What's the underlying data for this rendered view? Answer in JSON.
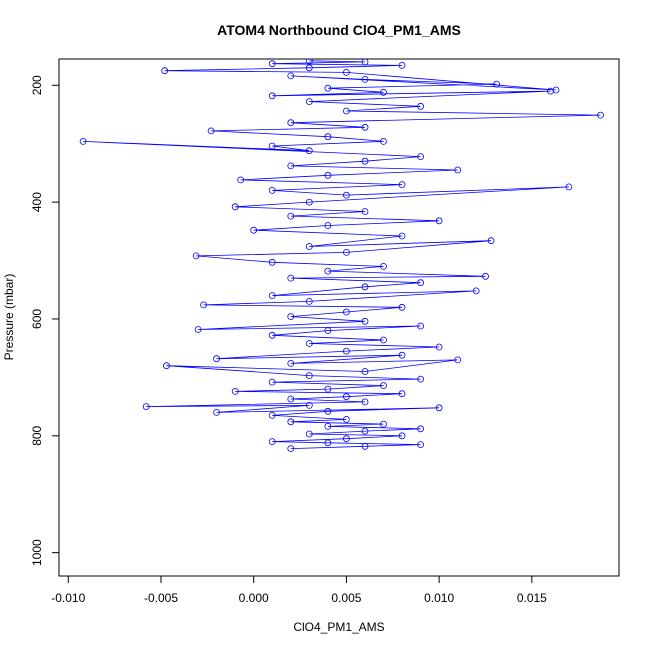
{
  "chart_data": {
    "type": "line",
    "title": "ATOM4 Northbound ClO4_PM1_AMS",
    "xlabel": "ClO4_PM1_AMS",
    "ylabel": "Pressure (mbar)",
    "xlim": [
      -0.0105,
      0.0197
    ],
    "ylim": [
      1040,
      155
    ],
    "y_reversed": true,
    "x_ticks": [
      -0.01,
      -0.005,
      0.0,
      0.005,
      0.01,
      0.015
    ],
    "x_tick_labels": [
      "-0.010",
      "-0.005",
      "0.000",
      "0.005",
      "0.010",
      "0.015"
    ],
    "y_ticks": [
      200,
      400,
      600,
      800,
      1000
    ],
    "y_tick_labels": [
      "200",
      "400",
      "600",
      "800",
      "1000"
    ],
    "marker": "open-circle",
    "grid": false,
    "colors": {
      "series": "#0000ff",
      "axis": "#000000"
    },
    "series": [
      {
        "points": [
          [
            0.002,
            822
          ],
          [
            0.006,
            818
          ],
          [
            0.009,
            815
          ],
          [
            0.004,
            812
          ],
          [
            0.001,
            810
          ],
          [
            0.005,
            805
          ],
          [
            0.008,
            800
          ],
          [
            0.003,
            797
          ],
          [
            0.006,
            792
          ],
          [
            0.009,
            788
          ],
          [
            0.004,
            784
          ],
          [
            0.007,
            780
          ],
          [
            0.002,
            776
          ],
          [
            0.005,
            772
          ],
          [
            0.001,
            765
          ],
          [
            0.004,
            758
          ],
          [
            0.01,
            752
          ],
          [
            -0.002,
            760
          ],
          [
            0.003,
            748
          ],
          [
            -0.0058,
            750
          ],
          [
            0.006,
            742
          ],
          [
            0.002,
            737
          ],
          [
            0.005,
            733
          ],
          [
            0.008,
            728
          ],
          [
            -0.001,
            724
          ],
          [
            0.004,
            720
          ],
          [
            0.007,
            714
          ],
          [
            0.001,
            708
          ],
          [
            0.009,
            703
          ],
          [
            0.003,
            697
          ],
          [
            -0.0047,
            680
          ],
          [
            0.006,
            690
          ],
          [
            0.011,
            670
          ],
          [
            0.002,
            676
          ],
          [
            0.008,
            662
          ],
          [
            -0.002,
            668
          ],
          [
            0.005,
            655
          ],
          [
            0.01,
            648
          ],
          [
            0.003,
            642
          ],
          [
            0.007,
            636
          ],
          [
            0.001,
            628
          ],
          [
            0.004,
            620
          ],
          [
            0.009,
            612
          ],
          [
            -0.003,
            618
          ],
          [
            0.006,
            604
          ],
          [
            0.002,
            596
          ],
          [
            0.005,
            588
          ],
          [
            0.008,
            580
          ],
          [
            -0.0027,
            576
          ],
          [
            0.003,
            570
          ],
          [
            0.012,
            552
          ],
          [
            0.001,
            560
          ],
          [
            0.006,
            545
          ],
          [
            0.009,
            538
          ],
          [
            0.002,
            530
          ],
          [
            0.0125,
            527
          ],
          [
            0.004,
            518
          ],
          [
            0.007,
            510
          ],
          [
            0.001,
            503
          ],
          [
            -0.0031,
            492
          ],
          [
            0.005,
            486
          ],
          [
            0.0128,
            466
          ],
          [
            0.003,
            476
          ],
          [
            0.008,
            458
          ],
          [
            0.0,
            448
          ],
          [
            0.004,
            440
          ],
          [
            0.01,
            432
          ],
          [
            0.002,
            424
          ],
          [
            0.006,
            416
          ],
          [
            -0.001,
            408
          ],
          [
            0.003,
            400
          ],
          [
            0.017,
            374
          ],
          [
            0.005,
            388
          ],
          [
            0.001,
            380
          ],
          [
            0.008,
            370
          ],
          [
            -0.0007,
            362
          ],
          [
            0.004,
            354
          ],
          [
            0.011,
            345
          ],
          [
            0.002,
            338
          ],
          [
            0.006,
            330
          ],
          [
            0.009,
            322
          ],
          [
            -0.0092,
            296
          ],
          [
            0.003,
            312
          ],
          [
            0.001,
            304
          ],
          [
            0.007,
            296
          ],
          [
            0.004,
            288
          ],
          [
            -0.0023,
            278
          ],
          [
            0.006,
            272
          ],
          [
            0.002,
            264
          ],
          [
            0.0187,
            251
          ],
          [
            0.005,
            244
          ],
          [
            0.009,
            236
          ],
          [
            0.003,
            228
          ],
          [
            0.016,
            210
          ],
          [
            0.001,
            218
          ],
          [
            0.007,
            212
          ],
          [
            0.004,
            205
          ],
          [
            0.0131,
            198
          ],
          [
            0.006,
            190
          ],
          [
            0.002,
            184
          ],
          [
            0.0163,
            208
          ],
          [
            0.005,
            178
          ],
          [
            -0.0048,
            175
          ],
          [
            0.003,
            170
          ],
          [
            0.008,
            166
          ],
          [
            0.001,
            163
          ],
          [
            0.006,
            160
          ],
          [
            0.003,
            158
          ]
        ]
      }
    ]
  }
}
